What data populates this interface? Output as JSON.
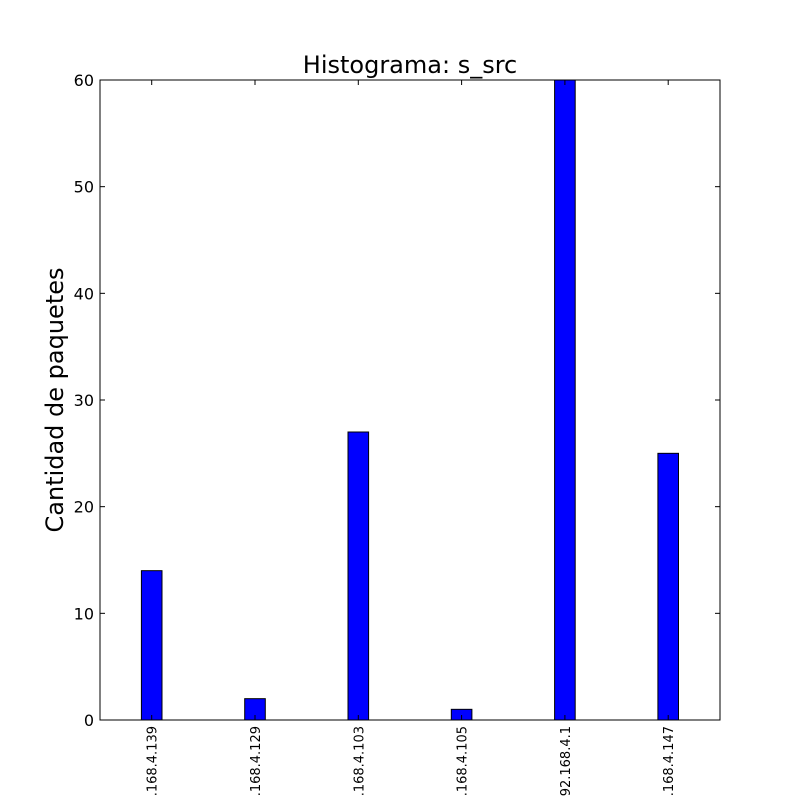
{
  "chart_data": {
    "type": "bar",
    "title": "Histograma: s_src",
    "xlabel": "",
    "ylabel": "Cantidad de paquetes",
    "ylim": [
      0,
      60
    ],
    "yticks": [
      "0",
      "10",
      "20",
      "30",
      "40",
      "50",
      "60"
    ],
    "ytick_values": [
      0,
      10,
      20,
      30,
      40,
      50,
      60
    ],
    "categories": [
      ".168.4.139",
      ".168.4.129",
      ".168.4.103",
      ".168.4.105",
      "92.168.4.1",
      ".168.4.147"
    ],
    "values": [
      14,
      2,
      27,
      1,
      60,
      25
    ],
    "bar_color": "#0000ff",
    "bar_edge_color": "#000000",
    "grid": false
  }
}
